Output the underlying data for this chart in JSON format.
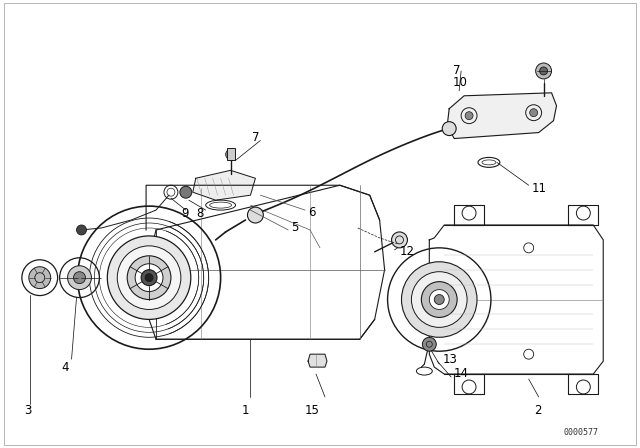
{
  "bg_color": "#ffffff",
  "line_color": "#000000",
  "fig_width": 6.4,
  "fig_height": 4.48,
  "dpi": 100,
  "watermark": "0000577",
  "border_color": "#cccccc"
}
